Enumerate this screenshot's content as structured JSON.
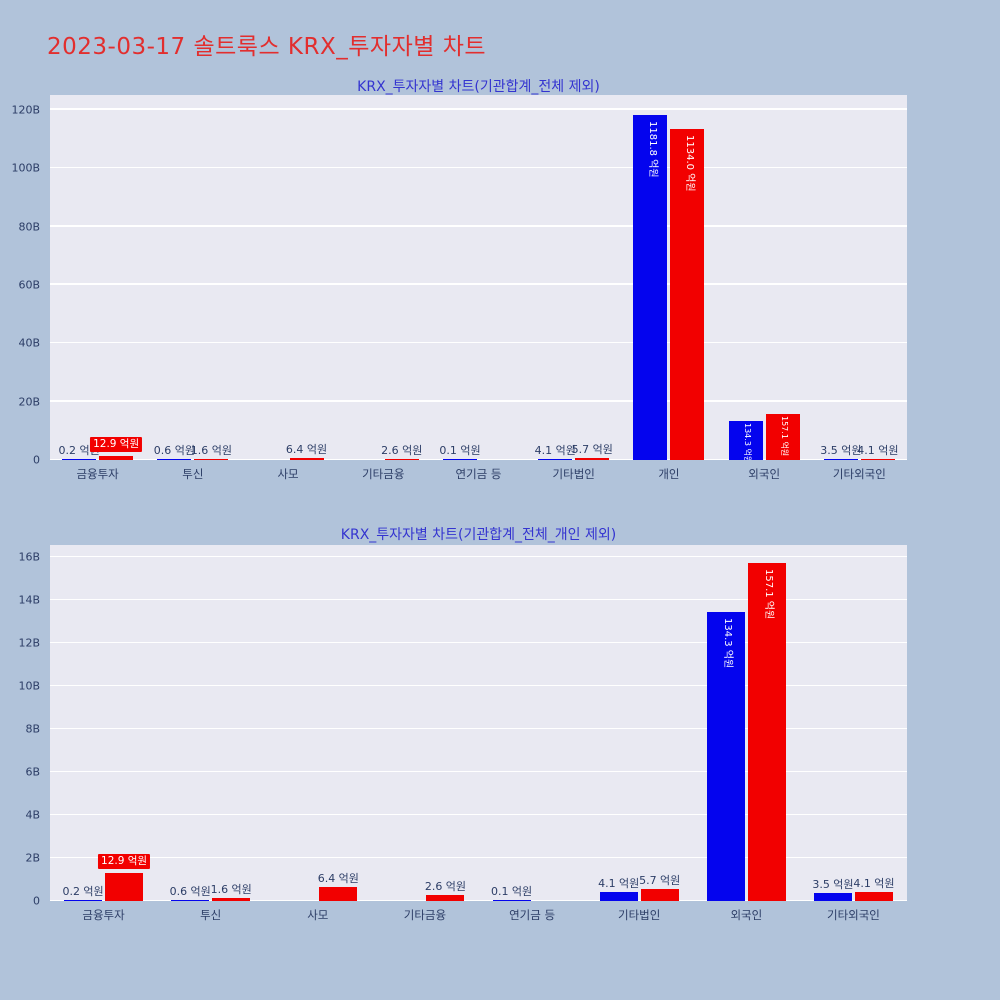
{
  "page": {
    "title": "2023-03-17 솔트룩스 KRX_투자자별 차트",
    "title_color": "#e22e2e",
    "background_color": "#b1c3da",
    "plot_background_color": "#e9e9f2"
  },
  "chart_data": [
    {
      "type": "bar",
      "title": "KRX_투자자별 차트(기관합계_전체 제외)",
      "value_unit": "억원",
      "axis_unit": "B",
      "grid": true,
      "legend": "none",
      "categories": [
        "금융투자",
        "투신",
        "사모",
        "기타금융",
        "연기금 등",
        "기타법인",
        "개인",
        "외국인",
        "기타외국인"
      ],
      "series": [
        {
          "name": "series-blue",
          "color": "#0404ee",
          "values": [
            0.2,
            0.6,
            null,
            null,
            0.1,
            4.1,
            1181.8,
            134.3,
            3.5
          ],
          "labels": [
            "0.2 억원",
            "0.6 억원",
            null,
            null,
            "0.1 억원",
            "4.1 억원",
            "1181.8 억원",
            "134.3 억원",
            "3.5 억원"
          ],
          "highlight": []
        },
        {
          "name": "series-red",
          "color": "#f20000",
          "values": [
            12.9,
            1.6,
            6.4,
            2.6,
            null,
            5.7,
            1134.0,
            157.1,
            4.1
          ],
          "labels": [
            "12.9 억원",
            "1.6 억원",
            "6.4 억원",
            "2.6 억원",
            null,
            "5.7 억원",
            "1134.0 억원",
            "157.1 억원",
            "4.1 억원"
          ],
          "highlight": [
            0
          ]
        }
      ],
      "ytick_values": [
        0,
        20,
        40,
        60,
        80,
        100,
        120
      ],
      "ytick_labels": [
        "0",
        "20B",
        "40B",
        "60B",
        "80B",
        "100B",
        "120B"
      ],
      "ylim": [
        0,
        124.8
      ]
    },
    {
      "type": "bar",
      "title": "KRX_투자자별 차트(기관합계_전체_개인 제외)",
      "value_unit": "억원",
      "axis_unit": "B",
      "grid": true,
      "legend": "none",
      "categories": [
        "금융투자",
        "투신",
        "사모",
        "기타금융",
        "연기금 등",
        "기타법인",
        "외국인",
        "기타외국인"
      ],
      "series": [
        {
          "name": "series-blue",
          "color": "#0404ee",
          "values": [
            0.2,
            0.6,
            null,
            null,
            0.1,
            4.1,
            134.3,
            3.5
          ],
          "labels": [
            "0.2 억원",
            "0.6 억원",
            null,
            null,
            "0.1 억원",
            "4.1 억원",
            "134.3 억원",
            "3.5 억원"
          ],
          "highlight": []
        },
        {
          "name": "series-red",
          "color": "#f20000",
          "values": [
            12.9,
            1.6,
            6.4,
            2.6,
            null,
            5.7,
            157.1,
            4.1
          ],
          "labels": [
            "12.9 억원",
            "1.6 억원",
            "6.4 억원",
            "2.6 억원",
            null,
            "5.7 억원",
            "157.1 억원",
            "4.1 억원"
          ],
          "highlight": [
            0
          ]
        }
      ],
      "ytick_values": [
        0,
        2,
        4,
        6,
        8,
        10,
        12,
        14,
        16
      ],
      "ytick_labels": [
        "0",
        "2B",
        "4B",
        "6B",
        "8B",
        "10B",
        "12B",
        "14B",
        "16B"
      ],
      "ylim": [
        0,
        16.6
      ]
    }
  ]
}
